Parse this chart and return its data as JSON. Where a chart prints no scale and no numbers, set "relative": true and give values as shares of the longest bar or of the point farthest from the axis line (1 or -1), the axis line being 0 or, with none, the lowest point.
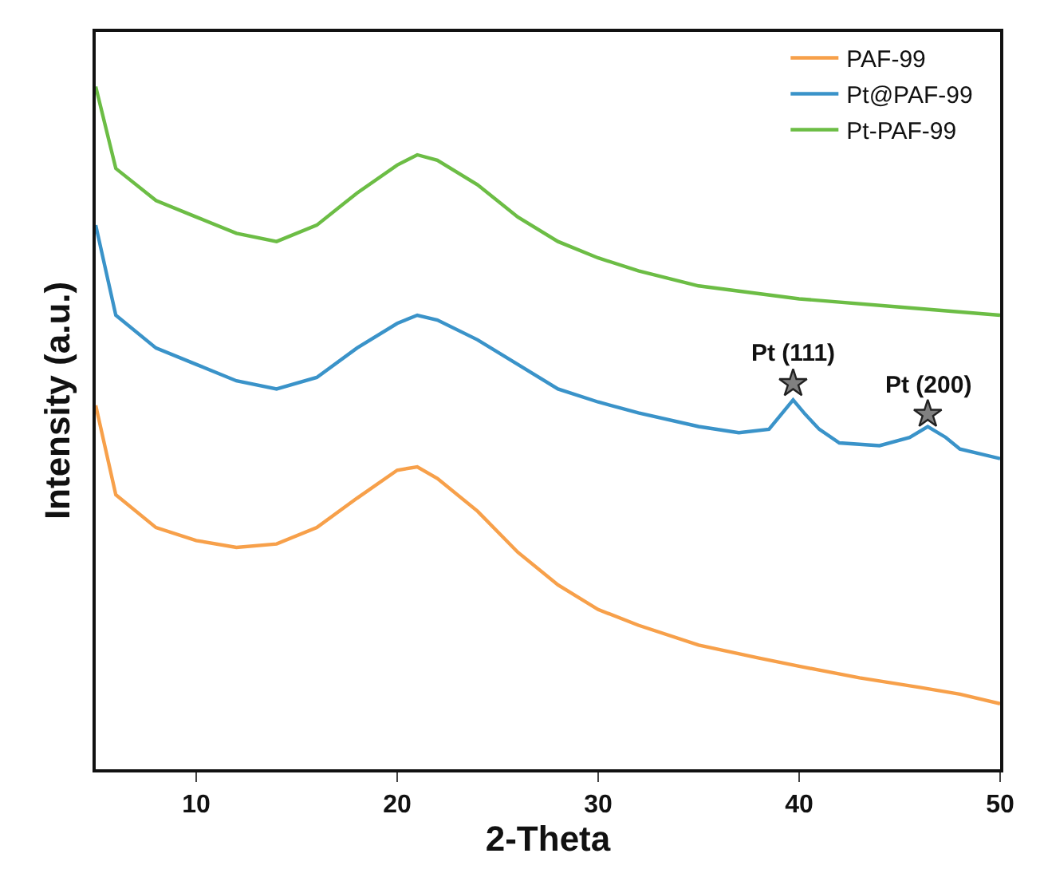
{
  "chart_data": {
    "type": "line",
    "relative": true,
    "xlabel": "2-Theta",
    "ylabel": "Intensity (a.u.)",
    "xlim": [
      5,
      50
    ],
    "xticks": [
      10,
      20,
      30,
      40,
      50
    ],
    "legend": "top right",
    "marker": "none",
    "series": [
      {
        "name": "PAF-99",
        "color": "#f7a04a",
        "x": [
          5,
          6,
          8,
          10,
          12,
          14,
          16,
          18,
          20,
          21,
          22,
          24,
          26,
          28,
          30,
          32,
          35,
          38,
          40,
          43,
          46,
          48,
          50
        ],
        "values": [
          0.533,
          0.402,
          0.354,
          0.335,
          0.325,
          0.33,
          0.354,
          0.397,
          0.438,
          0.443,
          0.426,
          0.378,
          0.318,
          0.27,
          0.234,
          0.211,
          0.182,
          0.163,
          0.151,
          0.134,
          0.12,
          0.11,
          0.096
        ]
      },
      {
        "name": "Pt@PAF-99",
        "color": "#3a93c9",
        "x": [
          5,
          6,
          8,
          10,
          12,
          14,
          16,
          18,
          20,
          21,
          22,
          24,
          26,
          28,
          30,
          32,
          35,
          37,
          38.5,
          39.7,
          40.3,
          41,
          42,
          44,
          45.5,
          46.4,
          47.3,
          48,
          50
        ],
        "values": [
          0.797,
          0.665,
          0.617,
          0.593,
          0.569,
          0.557,
          0.574,
          0.617,
          0.653,
          0.665,
          0.658,
          0.629,
          0.593,
          0.557,
          0.538,
          0.522,
          0.502,
          0.493,
          0.498,
          0.541,
          0.52,
          0.498,
          0.478,
          0.474,
          0.486,
          0.502,
          0.486,
          0.469,
          0.455
        ]
      },
      {
        "name": "Pt-PAF-99",
        "color": "#6cbd45",
        "x": [
          5,
          6,
          8,
          10,
          12,
          14,
          16,
          18,
          20,
          21,
          22,
          24,
          26,
          28,
          30,
          32,
          35,
          40,
          45,
          50
        ],
        "values": [
          1.0,
          0.88,
          0.833,
          0.809,
          0.785,
          0.773,
          0.797,
          0.844,
          0.885,
          0.9,
          0.892,
          0.856,
          0.809,
          0.773,
          0.749,
          0.73,
          0.708,
          0.689,
          0.677,
          0.665
        ]
      },
      {
        "type": "scatter",
        "marker": "star",
        "color": "#808080",
        "x": [
          39.7,
          46.4
        ],
        "values": [
          0.565,
          0.52
        ]
      }
    ],
    "annotations": [
      {
        "text": "Pt (111)",
        "x": 39.7,
        "y": 0.565
      },
      {
        "text": "Pt (200)",
        "x": 46.4,
        "y": 0.52
      }
    ]
  }
}
